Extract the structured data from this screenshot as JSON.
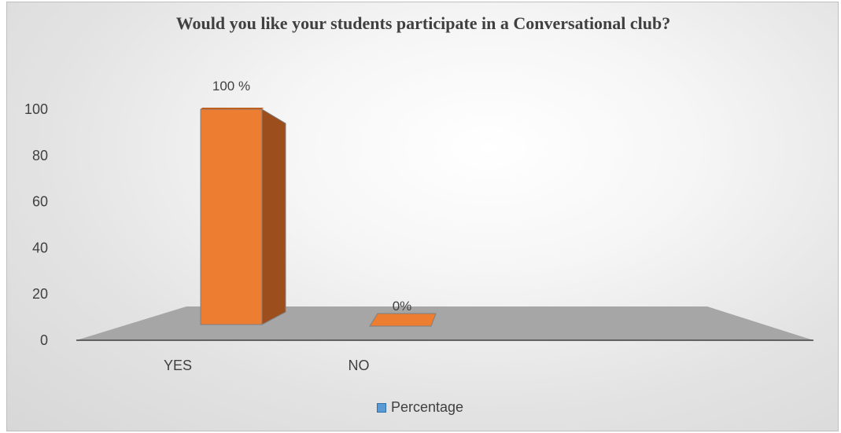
{
  "chart_data": {
    "type": "bar",
    "title": "Would you like your students participate in a Conversational club?",
    "categories": [
      "YES",
      "NO"
    ],
    "series": [
      {
        "name": "Percentage",
        "values": [
          100,
          0
        ],
        "labels": [
          "100 %",
          "0%"
        ]
      }
    ],
    "yticks": [
      0,
      20,
      40,
      60,
      80,
      100
    ],
    "ylim": [
      0,
      100
    ],
    "legend_position": "bottom",
    "colors": {
      "bar_front": "#ed7d31",
      "bar_side": "#9c4f1d",
      "bar_top": "#c06020",
      "floor": "#a6a6a6",
      "legend_swatch": "#5b9bd5"
    }
  }
}
